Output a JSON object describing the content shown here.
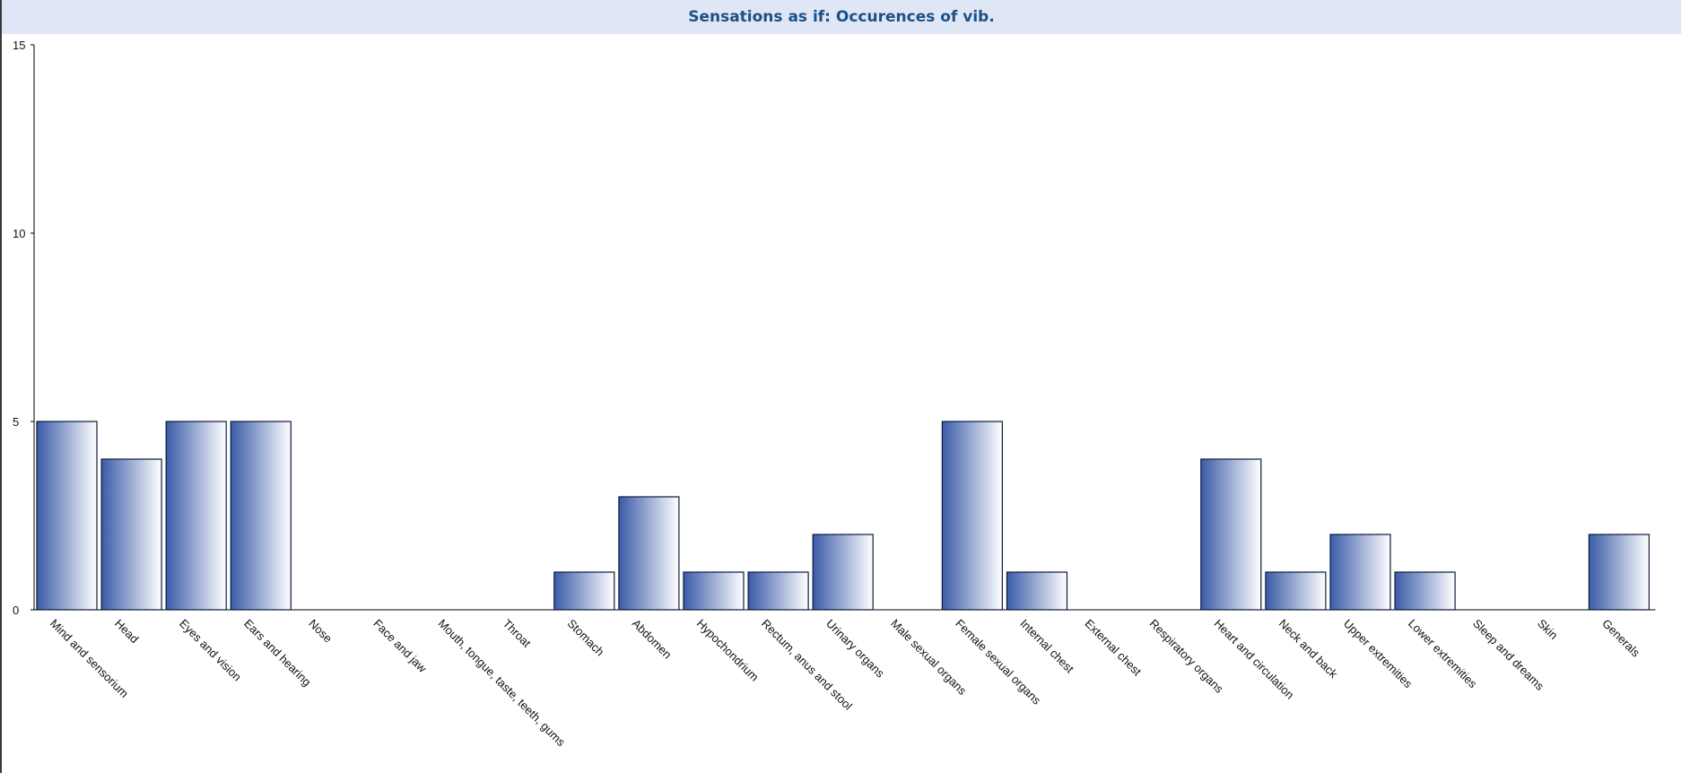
{
  "chart_data": {
    "type": "bar",
    "title": "Sensations as if: Occurences of vib.",
    "xlabel": "",
    "ylabel": "",
    "ylim": [
      0,
      15
    ],
    "yticks": [
      0,
      5,
      10,
      15
    ],
    "grid": false,
    "legend": "none",
    "categories": [
      "Mind and sensorium",
      "Head",
      "Eyes and vision",
      "Ears and hearing",
      "Nose",
      "Face and jaw",
      "Mouth, tongue, taste, teeth, gums",
      "Throat",
      "Stomach",
      "Abdomen",
      "Hypochondrium",
      "Rectum, anus and stool",
      "Urinary organs",
      "Male sexual organs",
      "Female sexual organs",
      "Internal chest",
      "External chest",
      "Respiratory organs",
      "Heart and circulation",
      "Neck and back",
      "Upper extremities",
      "Lower extremities",
      "Sleep and dreams",
      "Skin",
      "Generals"
    ],
    "values": [
      5,
      4,
      5,
      5,
      0,
      0,
      0,
      0,
      1,
      3,
      1,
      1,
      2,
      0,
      5,
      1,
      0,
      0,
      4,
      1,
      2,
      1,
      0,
      0,
      2
    ],
    "colors": {
      "bar_dark": "#3a5ba8",
      "bar_light": "#ffffff",
      "bar_border": "#0d1a3a",
      "title_bg": "#dfe6f6",
      "title_text": "#1f4f82"
    }
  }
}
